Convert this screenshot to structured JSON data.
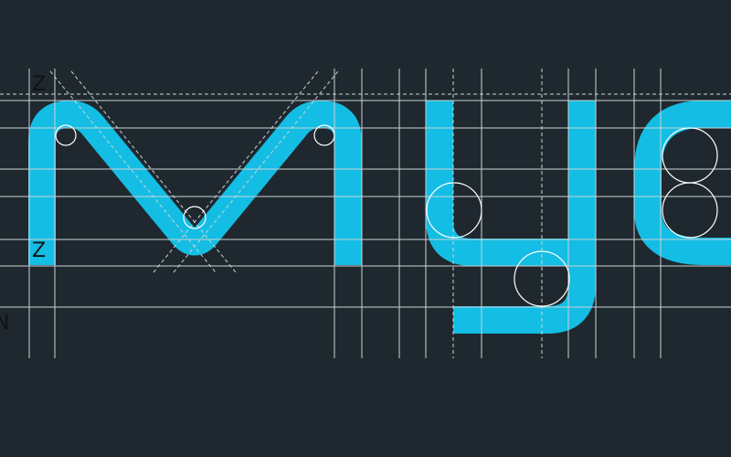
{
  "markers": [
    "Z",
    "Z",
    "N"
  ]
}
